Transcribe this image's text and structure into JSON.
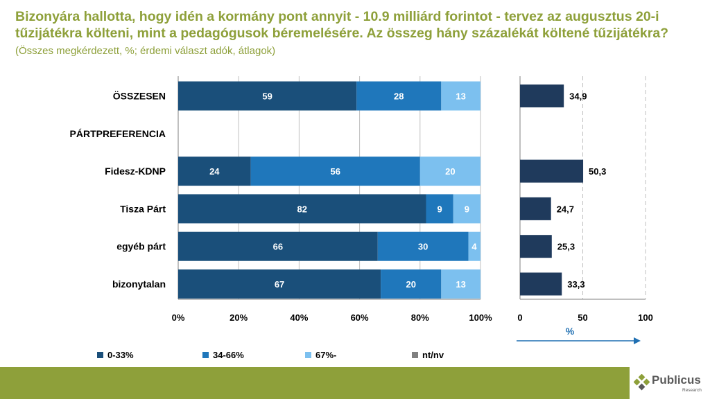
{
  "title": {
    "main": "Bizonyára hallotta, hogy idén a kormány pont annyit - 10.9 milliárd forintot - tervez az augusztus 20-i tűzijátékra költeni, mint a pedagógusok béremelésére. Az összeg hány százalékát költené tűzijátékra?",
    "sub": "(Összes megkérdezett, %; érdemi választ adók, átlagok)"
  },
  "chart_data": [
    {
      "type": "bar",
      "stacked": true,
      "orientation": "horizontal",
      "categories": [
        "ÖSSZESEN",
        "PÁRTPREFERENCIA",
        "Fidesz-KDNP",
        "Tisza Párt",
        "egyéb párt",
        "bizonytalan"
      ],
      "series": [
        {
          "name": "0-33%",
          "color": "#1a4f7a",
          "values": [
            59,
            null,
            24,
            82,
            66,
            67
          ]
        },
        {
          "name": "34-66%",
          "color": "#1f77bb",
          "values": [
            28,
            null,
            56,
            9,
            30,
            20
          ]
        },
        {
          "name": "67%-",
          "color": "#7cc0ef",
          "values": [
            13,
            null,
            20,
            9,
            4,
            13
          ]
        },
        {
          "name": "nt/nv",
          "color": "#808080",
          "values": [
            0,
            null,
            0,
            0,
            0,
            0
          ]
        }
      ],
      "xlim": [
        0,
        100
      ],
      "xticks": [
        "0%",
        "20%",
        "40%",
        "60%",
        "80%",
        "100%"
      ],
      "grid": true,
      "legend": "bottom"
    },
    {
      "type": "bar",
      "orientation": "horizontal",
      "categories": [
        "ÖSSZESEN",
        "PÁRTPREFERENCIA",
        "Fidesz-KDNP",
        "Tisza Párt",
        "egyéb párt",
        "bizonytalan"
      ],
      "values": [
        34.9,
        null,
        50.3,
        24.7,
        25.3,
        33.3
      ],
      "labels": [
        "34,9",
        "",
        "50,3",
        "24,7",
        "25,3",
        "33,3"
      ],
      "color": "#1f3a5c",
      "xlim": [
        0,
        100
      ],
      "xticks": [
        "0",
        "50",
        "100"
      ],
      "xlabel": "%",
      "grid": true
    }
  ],
  "footer": {
    "logo_name": "Publicus",
    "logo_sub": "Research",
    "color": "#8ea03a"
  }
}
